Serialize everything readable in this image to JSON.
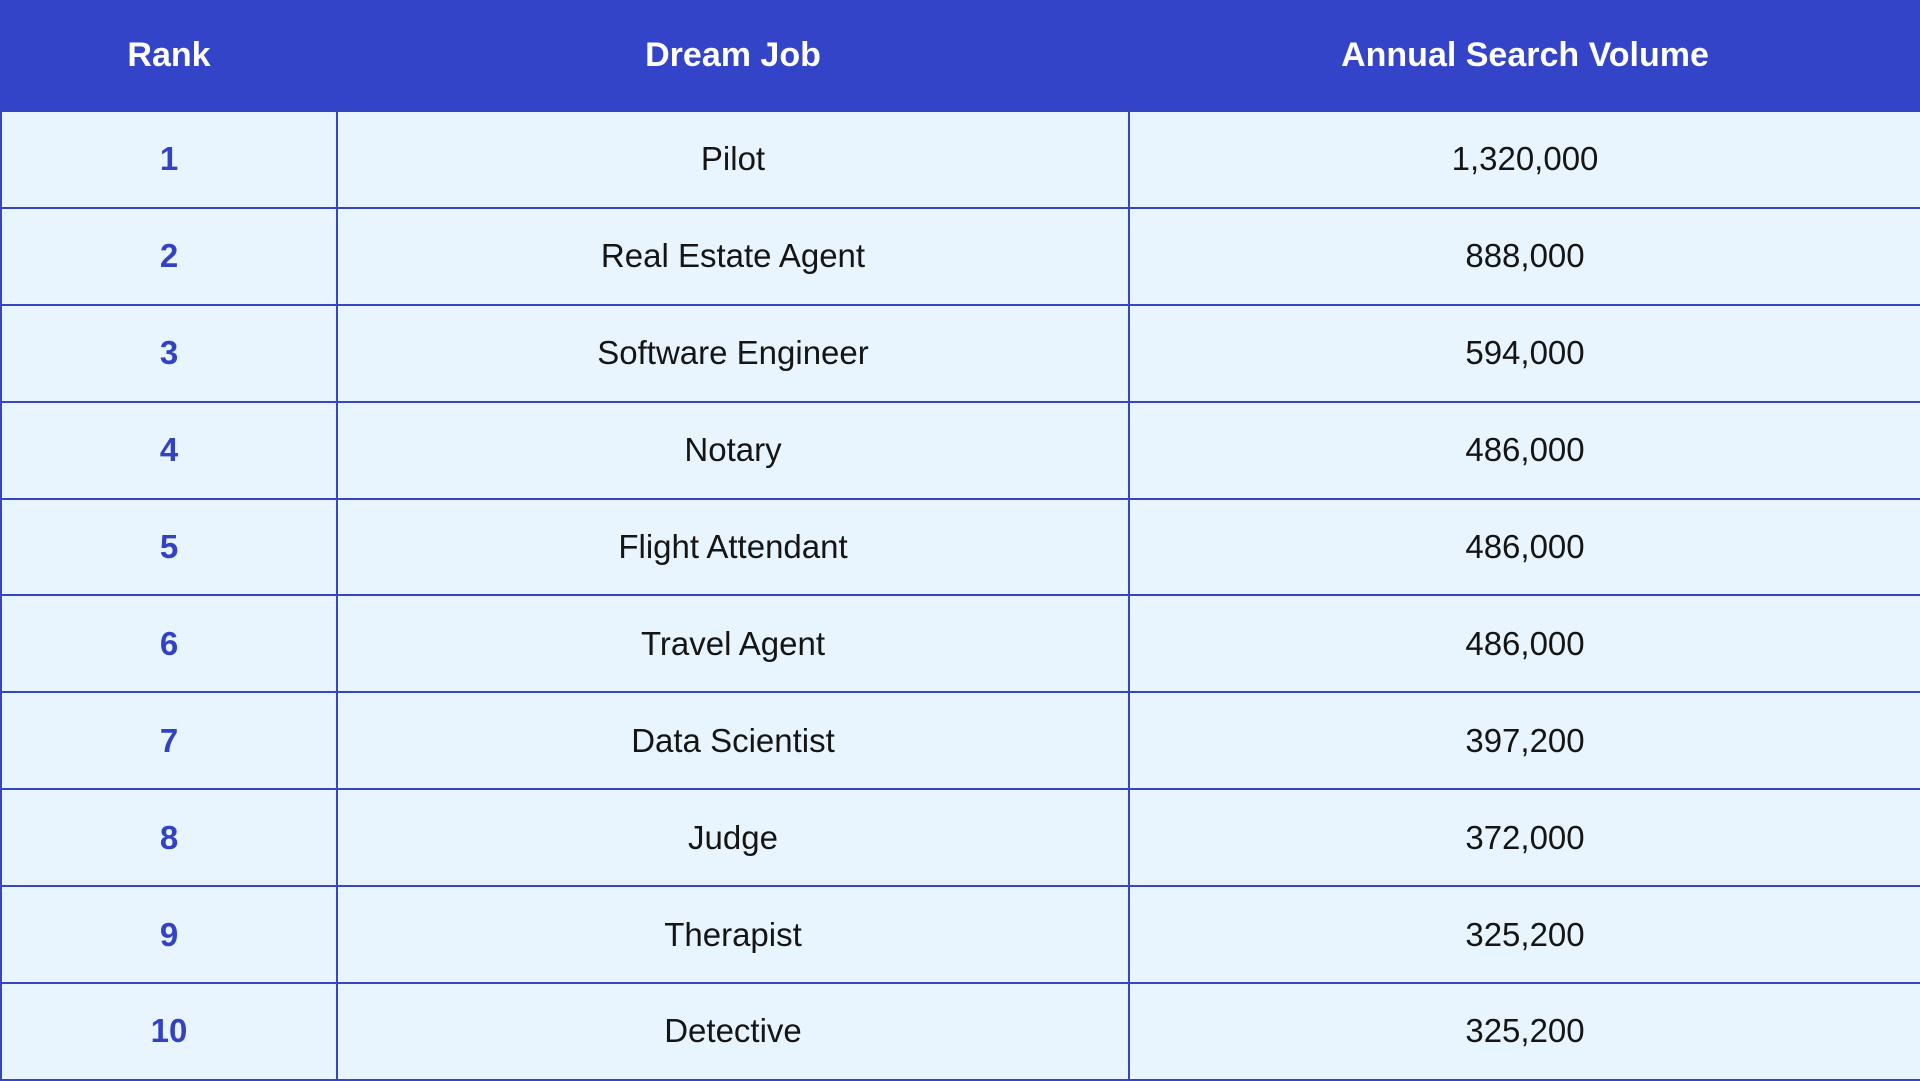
{
  "chart_data": {
    "type": "table",
    "columns": [
      "Rank",
      "Dream Job",
      "Annual Search Volume"
    ],
    "rows": [
      {
        "rank": "1",
        "job": "Pilot",
        "volume": "1,320,000"
      },
      {
        "rank": "2",
        "job": "Real Estate Agent",
        "volume": "888,000"
      },
      {
        "rank": "3",
        "job": "Software Engineer",
        "volume": "594,000"
      },
      {
        "rank": "4",
        "job": "Notary",
        "volume": "486,000"
      },
      {
        "rank": "5",
        "job": "Flight Attendant",
        "volume": "486,000"
      },
      {
        "rank": "6",
        "job": "Travel Agent",
        "volume": "486,000"
      },
      {
        "rank": "7",
        "job": "Data Scientist",
        "volume": "397,200"
      },
      {
        "rank": "8",
        "job": "Judge",
        "volume": "372,000"
      },
      {
        "rank": "9",
        "job": "Therapist",
        "volume": "325,200"
      },
      {
        "rank": "10",
        "job": "Detective",
        "volume": "325,200"
      }
    ]
  },
  "colors": {
    "header_bg": "#3344c8",
    "header_text": "#ffffff",
    "row_bg": "#e8f5fe",
    "border": "#3646c0",
    "rank_text": "#3242c2",
    "cell_text": "#151515"
  }
}
